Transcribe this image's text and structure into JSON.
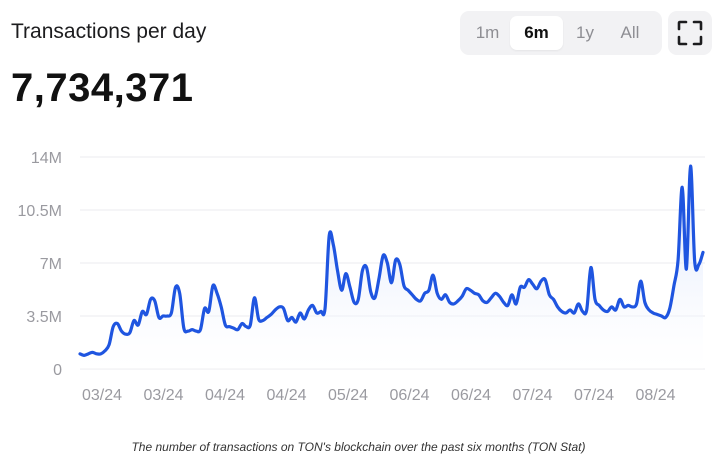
{
  "header": {
    "title": "Transactions per day",
    "value": "7,734,371"
  },
  "range_selector": {
    "options": [
      "1m",
      "6m",
      "1y",
      "All"
    ],
    "selected": "6m"
  },
  "icons": {
    "fullscreen": "fullscreen-icon"
  },
  "colors": {
    "line": "#1f55e0",
    "area_top": "#cfdcfb",
    "area_bottom": "#ffffff",
    "grid": "#ebebef",
    "tick": "#9a9aa0"
  },
  "caption": "The number of transactions on TON's blockchain over the past six months (TON Stat)",
  "chart_data": {
    "type": "area",
    "ylim": [
      0,
      14000000
    ],
    "y_ticks": [
      0,
      3500000,
      7000000,
      10500000,
      14000000
    ],
    "y_tick_labels": [
      "0",
      "3.5M",
      "7M",
      "10.5M",
      "14M"
    ],
    "x_tick_labels": [
      "03/24",
      "03/24",
      "04/24",
      "04/24",
      "05/24",
      "06/24",
      "06/24",
      "07/24",
      "07/24",
      "08/24"
    ],
    "grid": true,
    "legend": "none",
    "series": [
      {
        "values": [
          1000000,
          900000,
          1000000,
          1100000,
          1000000,
          1000000,
          1200000,
          1600000,
          2800000,
          3000000,
          2500000,
          2300000,
          2400000,
          3200000,
          2900000,
          3800000,
          3600000,
          4600000,
          4500000,
          3400000,
          3500000,
          3500000,
          3700000,
          5400000,
          5000000,
          2700000,
          2500000,
          2600000,
          2500000,
          2600000,
          4000000,
          3800000,
          5500000,
          5000000,
          4100000,
          2900000,
          2800000,
          2700000,
          2600000,
          3000000,
          2800000,
          2900000,
          4700000,
          3300000,
          3200000,
          3400000,
          3600000,
          3900000,
          4100000,
          4000000,
          3200000,
          3400000,
          3100000,
          3700000,
          3300000,
          3900000,
          4200000,
          3700000,
          3800000,
          4000000,
          8800000,
          8200000,
          6500000,
          5200000,
          6300000,
          5400000,
          4400000,
          4600000,
          6500000,
          6700000,
          5100000,
          4700000,
          6000000,
          7500000,
          7000000,
          5700000,
          7200000,
          6900000,
          5500000,
          5200000,
          4900000,
          4600000,
          4500000,
          5000000,
          5200000,
          6200000,
          5000000,
          4600000,
          4900000,
          4400000,
          4300000,
          4500000,
          4800000,
          5300000,
          5200000,
          5000000,
          4900000,
          4500000,
          4400000,
          4700000,
          5000000,
          4800000,
          4400000,
          4200000,
          4900000,
          4300000,
          5400000,
          5400000,
          5900000,
          5600000,
          5300000,
          5800000,
          5900000,
          4900000,
          4600000,
          4100000,
          3800000,
          3700000,
          3900000,
          3700000,
          4300000,
          3800000,
          3900000,
          6700000,
          4600000,
          4200000,
          3900000,
          3800000,
          4100000,
          3900000,
          4600000,
          4100000,
          4200000,
          4100000,
          4300000,
          5800000,
          4400000,
          3900000,
          3700000,
          3600000,
          3500000,
          3400000,
          4000000,
          5500000,
          7200000,
          12000000,
          6600000,
          13400000,
          7100000,
          6900000,
          7700000
        ]
      }
    ]
  }
}
